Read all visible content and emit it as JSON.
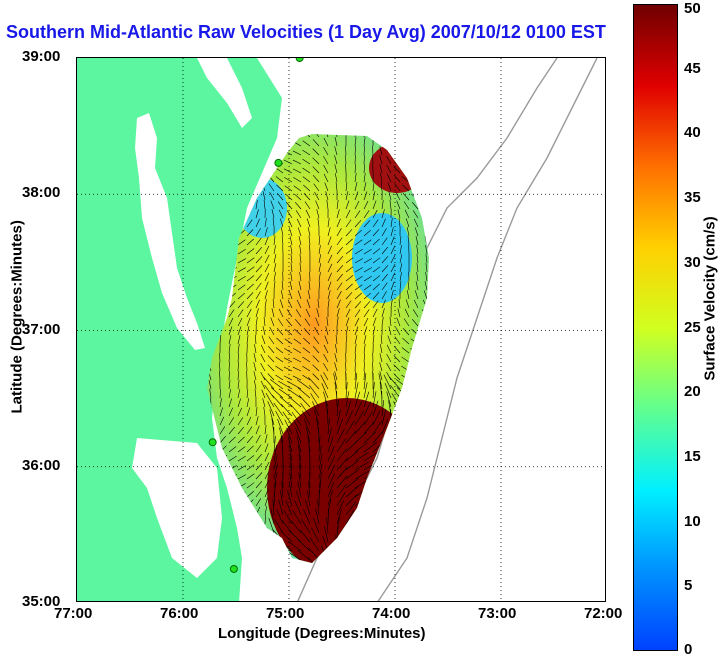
{
  "title": "Southern Mid-Atlantic Raw Velocities (1 Day Avg) 2007/10/12 0100 EST",
  "map": {
    "xlabel": "Longitude (Degrees:Minutes)",
    "ylabel": "Latitude (Degrees:Minutes)",
    "x_ticks": [
      "77:00",
      "76:00",
      "75:00",
      "74:00",
      "73:00",
      "72:00"
    ],
    "y_ticks": [
      "39:00",
      "38:00",
      "37:00",
      "36:00",
      "35:00"
    ],
    "lon_range": [
      -77,
      -72
    ],
    "lat_range": [
      35,
      39
    ],
    "grid": true,
    "land_color": "#5cf5a0",
    "stations": [
      {
        "lon": -74.9,
        "lat": 39.0
      },
      {
        "lon": -75.1,
        "lat": 38.23
      },
      {
        "lon": -75.72,
        "lat": 36.18
      },
      {
        "lon": -75.52,
        "lat": 35.25
      }
    ]
  },
  "colorbar": {
    "label": "Surface Velocity (cm/s)",
    "ticks": [
      "50",
      "45",
      "40",
      "35",
      "30",
      "25",
      "20",
      "15",
      "10",
      "5",
      "0"
    ],
    "range": [
      0,
      50
    ],
    "colormap": "jet"
  }
}
